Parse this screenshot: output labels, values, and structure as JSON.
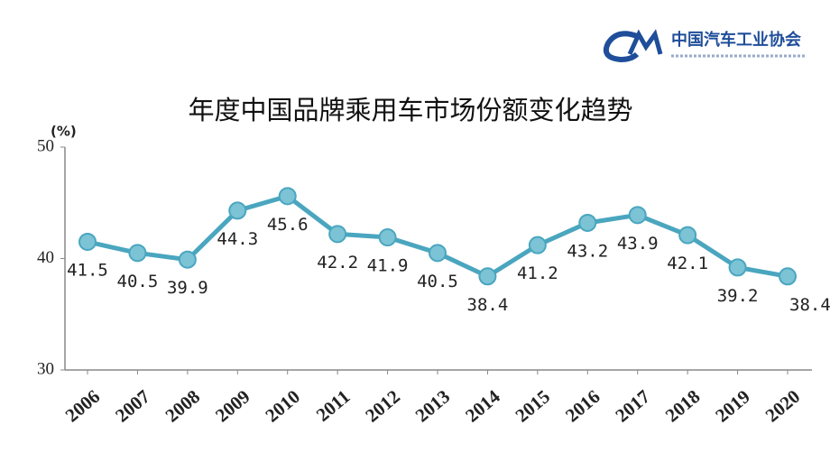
{
  "header": {
    "logo_text": "中国汽车工业协会"
  },
  "chart_data": {
    "type": "line",
    "title": "年度中国品牌乘用车市场份额变化趋势",
    "ylabel": "(%)",
    "categories": [
      "2006",
      "2007",
      "2008",
      "2009",
      "2010",
      "2011",
      "2012",
      "2013",
      "2014",
      "2015",
      "2016",
      "2017",
      "2018",
      "2019",
      "2020"
    ],
    "series": [
      {
        "name": "中国品牌乘用车市场份额",
        "color": "#4aa6bf",
        "values": [
          41.5,
          40.5,
          39.9,
          44.3,
          45.6,
          42.2,
          41.9,
          40.5,
          38.4,
          41.2,
          43.2,
          43.9,
          42.1,
          39.2,
          38.4
        ]
      }
    ],
    "ylim": [
      30,
      50
    ],
    "yticks": [
      30,
      40,
      50
    ],
    "grid": false
  }
}
